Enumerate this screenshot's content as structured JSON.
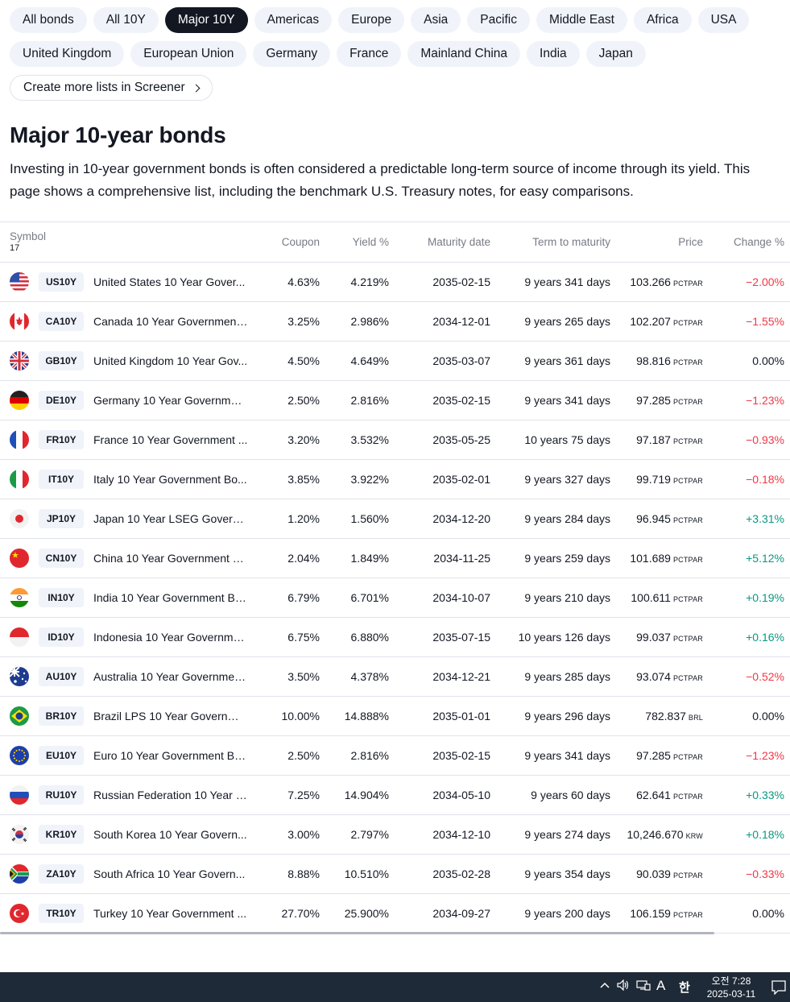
{
  "filters": {
    "row1": [
      "All bonds",
      "All 10Y",
      "Major 10Y",
      "Americas",
      "Europe",
      "Asia",
      "Pacific",
      "Middle East",
      "Africa",
      "USA"
    ],
    "row2": [
      "United Kingdom",
      "European Union",
      "Germany",
      "France",
      "Mainland China",
      "India",
      "Japan"
    ],
    "active": "Major 10Y",
    "screener_link": "Create more lists in Screener"
  },
  "heading": "Major 10-year bonds",
  "description": "Investing in 10-year government bonds is often considered a predictable long-term source of income through its yield. This page shows a comprehensive list, including the benchmark U.S. Treasury notes, for easy comparisons.",
  "table": {
    "symbol_header": "Symbol",
    "count": "17",
    "columns": [
      "Coupon",
      "Yield %",
      "Maturity date",
      "Term to maturity",
      "Price",
      "Change %"
    ],
    "rows": [
      {
        "ticker": "US10Y",
        "flag": "us-flag",
        "name": "United States 10 Year Gover...",
        "coupon": "4.63%",
        "yield": "4.219%",
        "maturity": "2035-02-15",
        "term": "9 years 341 days",
        "price": "103.266",
        "unit": "PCTPAR",
        "change": "−2.00%",
        "dir": "neg"
      },
      {
        "ticker": "CA10Y",
        "flag": "ca-flag",
        "name": "Canada 10 Year Government ...",
        "coupon": "3.25%",
        "yield": "2.986%",
        "maturity": "2034-12-01",
        "term": "9 years 265 days",
        "price": "102.207",
        "unit": "PCTPAR",
        "change": "−1.55%",
        "dir": "neg"
      },
      {
        "ticker": "GB10Y",
        "flag": "gb-flag",
        "name": "United Kingdom 10 Year Gov...",
        "coupon": "4.50%",
        "yield": "4.649%",
        "maturity": "2035-03-07",
        "term": "9 years 361 days",
        "price": "98.816",
        "unit": "PCTPAR",
        "change": "0.00%",
        "dir": "zero"
      },
      {
        "ticker": "DE10Y",
        "flag": "de-flag",
        "name": "Germany 10 Year Governmen...",
        "coupon": "2.50%",
        "yield": "2.816%",
        "maturity": "2035-02-15",
        "term": "9 years 341 days",
        "price": "97.285",
        "unit": "PCTPAR",
        "change": "−1.23%",
        "dir": "neg"
      },
      {
        "ticker": "FR10Y",
        "flag": "fr-flag",
        "name": "France 10 Year Government ...",
        "coupon": "3.20%",
        "yield": "3.532%",
        "maturity": "2035-05-25",
        "term": "10 years 75 days",
        "price": "97.187",
        "unit": "PCTPAR",
        "change": "−0.93%",
        "dir": "neg"
      },
      {
        "ticker": "IT10Y",
        "flag": "it-flag",
        "name": "Italy 10 Year Government Bo...",
        "coupon": "3.85%",
        "yield": "3.922%",
        "maturity": "2035-02-01",
        "term": "9 years 327 days",
        "price": "99.719",
        "unit": "PCTPAR",
        "change": "−0.18%",
        "dir": "neg"
      },
      {
        "ticker": "JP10Y",
        "flag": "jp-flag",
        "name": "Japan 10 Year LSEG Govern...",
        "coupon": "1.20%",
        "yield": "1.560%",
        "maturity": "2034-12-20",
        "term": "9 years 284 days",
        "price": "96.945",
        "unit": "PCTPAR",
        "change": "+3.31%",
        "dir": "pos"
      },
      {
        "ticker": "CN10Y",
        "flag": "cn-flag",
        "name": "China 10 Year Government B...",
        "coupon": "2.04%",
        "yield": "1.849%",
        "maturity": "2034-11-25",
        "term": "9 years 259 days",
        "price": "101.689",
        "unit": "PCTPAR",
        "change": "+5.12%",
        "dir": "pos"
      },
      {
        "ticker": "IN10Y",
        "flag": "in-flag",
        "name": "India 10 Year Government Bo...",
        "coupon": "6.79%",
        "yield": "6.701%",
        "maturity": "2034-10-07",
        "term": "9 years 210 days",
        "price": "100.611",
        "unit": "PCTPAR",
        "change": "+0.19%",
        "dir": "pos"
      },
      {
        "ticker": "ID10Y",
        "flag": "id-flag",
        "name": "Indonesia 10 Year Governme...",
        "coupon": "6.75%",
        "yield": "6.880%",
        "maturity": "2035-07-15",
        "term": "10 years 126 days",
        "price": "99.037",
        "unit": "PCTPAR",
        "change": "+0.16%",
        "dir": "pos"
      },
      {
        "ticker": "AU10Y",
        "flag": "au-flag",
        "name": "Australia 10 Year Governmen...",
        "coupon": "3.50%",
        "yield": "4.378%",
        "maturity": "2034-12-21",
        "term": "9 years 285 days",
        "price": "93.074",
        "unit": "PCTPAR",
        "change": "−0.52%",
        "dir": "neg"
      },
      {
        "ticker": "BR10Y",
        "flag": "br-flag",
        "name": "Brazil LPS 10 Year Governme...",
        "coupon": "10.00%",
        "yield": "14.888%",
        "maturity": "2035-01-01",
        "term": "9 years 296 days",
        "price": "782.837",
        "unit": "BRL",
        "change": "0.00%",
        "dir": "zero"
      },
      {
        "ticker": "EU10Y",
        "flag": "eu-flag",
        "name": "Euro 10 Year Government Bo...",
        "coupon": "2.50%",
        "yield": "2.816%",
        "maturity": "2035-02-15",
        "term": "9 years 341 days",
        "price": "97.285",
        "unit": "PCTPAR",
        "change": "−1.23%",
        "dir": "neg"
      },
      {
        "ticker": "RU10Y",
        "flag": "ru-flag",
        "name": "Russian Federation 10 Year G...",
        "coupon": "7.25%",
        "yield": "14.904%",
        "maturity": "2034-05-10",
        "term": "9 years 60 days",
        "price": "62.641",
        "unit": "PCTPAR",
        "change": "+0.33%",
        "dir": "pos"
      },
      {
        "ticker": "KR10Y",
        "flag": "kr-flag",
        "name": "South Korea 10 Year Govern...",
        "coupon": "3.00%",
        "yield": "2.797%",
        "maturity": "2034-12-10",
        "term": "9 years 274 days",
        "price": "10,246.670",
        "unit": "KRW",
        "change": "+0.18%",
        "dir": "pos"
      },
      {
        "ticker": "ZA10Y",
        "flag": "za-flag",
        "name": "South Africa 10 Year Govern...",
        "coupon": "8.88%",
        "yield": "10.510%",
        "maturity": "2035-02-28",
        "term": "9 years 354 days",
        "price": "90.039",
        "unit": "PCTPAR",
        "change": "−0.33%",
        "dir": "neg"
      },
      {
        "ticker": "TR10Y",
        "flag": "tr-flag",
        "name": "Turkey 10 Year Government ...",
        "coupon": "27.70%",
        "yield": "25.900%",
        "maturity": "2034-09-27",
        "term": "9 years 200 days",
        "price": "106.159",
        "unit": "PCTPAR",
        "change": "0.00%",
        "dir": "zero"
      }
    ]
  },
  "taskbar": {
    "time": "오전 7:28",
    "date": "2025-03-11",
    "ime_mode": "A",
    "ime_lang": "한"
  },
  "colors": {
    "negative": "#f23645",
    "positive": "#089981",
    "active_chip": "#131722",
    "chip_bg": "#f0f3fa"
  }
}
